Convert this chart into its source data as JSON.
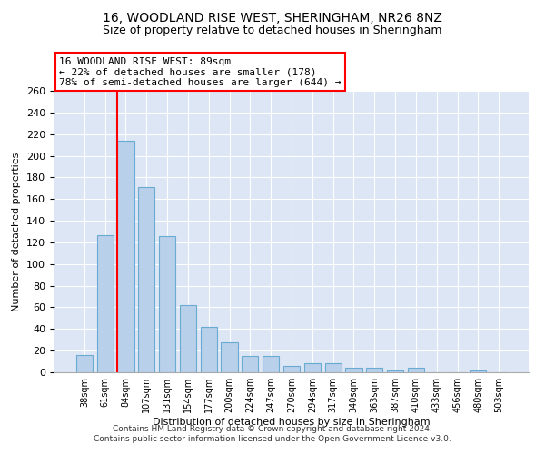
{
  "title1": "16, WOODLAND RISE WEST, SHERINGHAM, NR26 8NZ",
  "title2": "Size of property relative to detached houses in Sheringham",
  "xlabel": "Distribution of detached houses by size in Sheringham",
  "ylabel": "Number of detached properties",
  "categories": [
    "38sqm",
    "61sqm",
    "84sqm",
    "107sqm",
    "131sqm",
    "154sqm",
    "177sqm",
    "200sqm",
    "224sqm",
    "247sqm",
    "270sqm",
    "294sqm",
    "317sqm",
    "340sqm",
    "363sqm",
    "387sqm",
    "410sqm",
    "433sqm",
    "456sqm",
    "480sqm",
    "503sqm"
  ],
  "values": [
    16,
    127,
    214,
    171,
    126,
    62,
    42,
    28,
    15,
    15,
    6,
    8,
    8,
    4,
    4,
    2,
    4,
    0,
    0,
    2,
    0
  ],
  "bar_color": "#b8d0ea",
  "bar_edge_color": "#6aabd2",
  "background_color": "#dce6f5",
  "annotation_text": "16 WOODLAND RISE WEST: 89sqm\n← 22% of detached houses are smaller (178)\n78% of semi-detached houses are larger (644) →",
  "footnote1": "Contains HM Land Registry data © Crown copyright and database right 2024.",
  "footnote2": "Contains public sector information licensed under the Open Government Licence v3.0.",
  "ylim": [
    0,
    260
  ],
  "yticks": [
    0,
    20,
    40,
    60,
    80,
    100,
    120,
    140,
    160,
    180,
    200,
    220,
    240,
    260
  ],
  "red_line_bar_index": 2,
  "title1_fontsize": 10,
  "title2_fontsize": 9,
  "xlabel_fontsize": 8,
  "ylabel_fontsize": 8
}
